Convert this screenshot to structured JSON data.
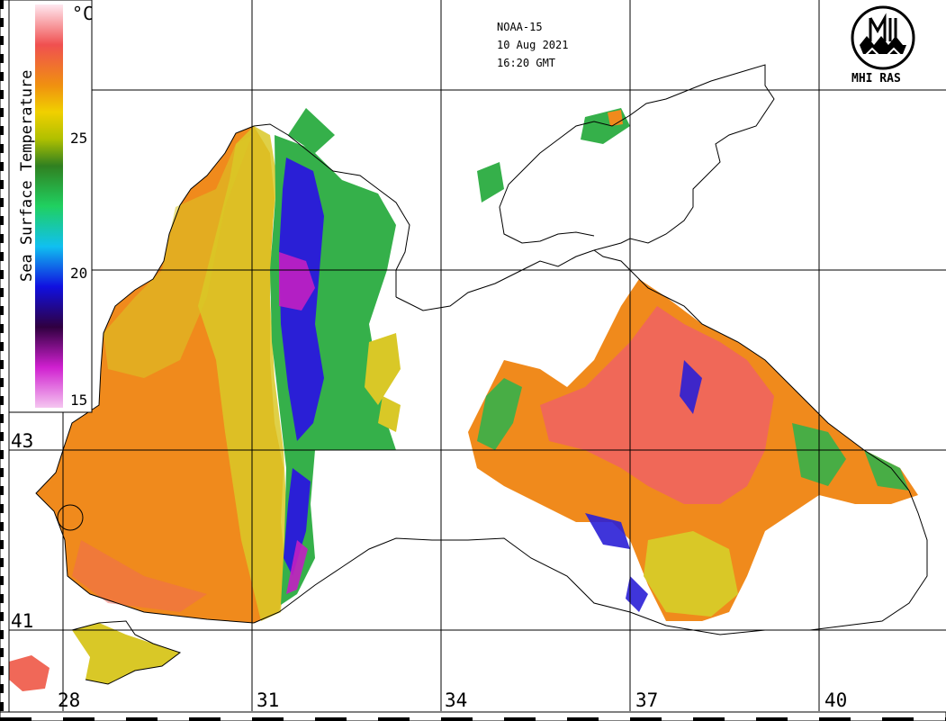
{
  "header": {
    "satellite": "NOAA-15",
    "date": "10 Aug 2021",
    "time": "16:20 GMT"
  },
  "organization": {
    "name": "MHI RAS",
    "logo_icon": "mhi-ras-logo-icon"
  },
  "colorbar": {
    "title": "Sea Surface Temperature",
    "unit": "°C",
    "ticks": [
      "15",
      "20",
      "25"
    ],
    "stops": [
      {
        "value": 15,
        "color": "#f5c6f0"
      },
      {
        "value": 16.5,
        "color": "#d020d0"
      },
      {
        "value": 18,
        "color": "#300040"
      },
      {
        "value": 19.5,
        "color": "#1010e0"
      },
      {
        "value": 21,
        "color": "#10c0f0"
      },
      {
        "value": 22.5,
        "color": "#20d060"
      },
      {
        "value": 24,
        "color": "#308020"
      },
      {
        "value": 25,
        "color": "#b0c000"
      },
      {
        "value": 26,
        "color": "#f0d000"
      },
      {
        "value": 27,
        "color": "#f09010"
      },
      {
        "value": 28.5,
        "color": "#f05050"
      },
      {
        "value": 30,
        "color": "#ffe8f0"
      }
    ]
  },
  "grid": {
    "latitudes": [
      "43",
      "41"
    ],
    "longitudes": [
      "28",
      "31",
      "34",
      "37",
      "40"
    ]
  },
  "colors": {
    "warm_sea": "#f08a1c",
    "hot_sea": "#f06858",
    "mild_sea": "#d9c827",
    "cool_front": "#35b04a",
    "cold_front": "#2a1fd6",
    "coldest": "#c21fc2",
    "coastline": "#000000",
    "grid_line": "#000000",
    "land": "#ffffff"
  }
}
